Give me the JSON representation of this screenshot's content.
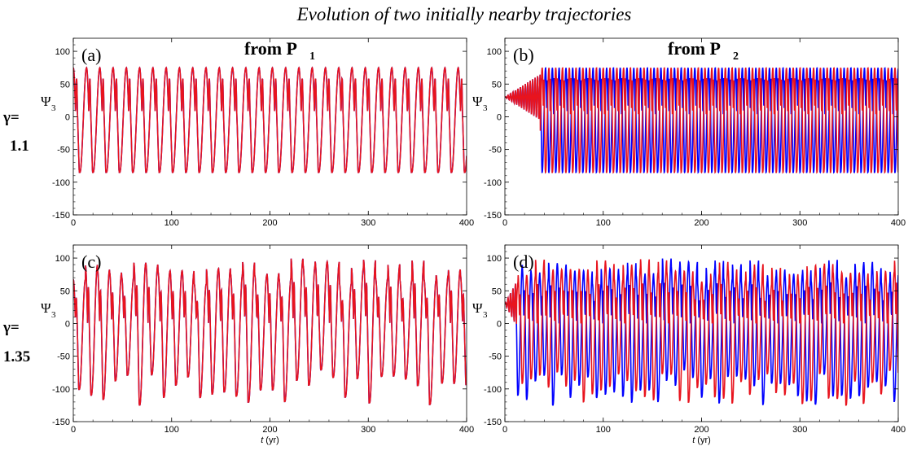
{
  "title": "Evolution of two initially nearby trajectories",
  "row_labels": [
    {
      "gamma_symbol": "γ=",
      "gamma_value": "1.1"
    },
    {
      "gamma_symbol": "γ=",
      "gamma_value": "1.35"
    }
  ],
  "colors": {
    "traj1": "#0000ff",
    "traj2": "#e8141e"
  },
  "chart_data": [
    {
      "type": "line",
      "panel": "(a)",
      "annotation": "from P",
      "annotation_sub": "1",
      "ylabel": "Ψ",
      "ylabel_sub": "3",
      "xlabel": "",
      "xlim": [
        0,
        400
      ],
      "ylim": [
        -150,
        120
      ],
      "xticks": [
        0,
        100,
        200,
        300,
        400
      ],
      "yticks": [
        -150,
        -100,
        -50,
        0,
        50,
        100
      ],
      "regime": "periodic",
      "gamma": 1.1,
      "period_yr": 13.5,
      "ymax": 75,
      "ymin": -85,
      "secondary_peak": 55,
      "diverge_at_yr": null,
      "series": []
    },
    {
      "type": "line",
      "panel": "(b)",
      "annotation": "from P",
      "annotation_sub": "2",
      "ylabel": "Ψ",
      "ylabel_sub": "3",
      "xlabel": "",
      "xlim": [
        0,
        400
      ],
      "ylim": [
        -150,
        120
      ],
      "xticks": [
        0,
        100,
        200,
        300,
        400
      ],
      "yticks": [
        -150,
        -100,
        -50,
        0,
        50,
        100
      ],
      "regime": "periodic",
      "gamma": 1.1,
      "period_yr": 6.9,
      "ymax": 75,
      "ymin": -85,
      "secondary_peak": 55,
      "diverge_at_yr": 36,
      "series": []
    },
    {
      "type": "line",
      "panel": "(c)",
      "annotation": "",
      "annotation_sub": "",
      "ylabel": "Ψ",
      "ylabel_sub": "3",
      "xlabel": "t (yr)",
      "xlim": [
        0,
        400
      ],
      "ylim": [
        -150,
        120
      ],
      "xticks": [
        0,
        100,
        200,
        300,
        400
      ],
      "yticks": [
        -150,
        -100,
        -50,
        0,
        50,
        100
      ],
      "regime": "chaotic",
      "gamma": 1.35,
      "period_yr": 12.3,
      "ymax": 100,
      "ymin": -125,
      "secondary_peak": 60,
      "diverge_at_yr": null,
      "series": []
    },
    {
      "type": "line",
      "panel": "(d)",
      "annotation": "",
      "annotation_sub": "",
      "ylabel": "Ψ",
      "ylabel_sub": "3",
      "xlabel": "t (yr)",
      "xlim": [
        0,
        400
      ],
      "ylim": [
        -150,
        120
      ],
      "xticks": [
        0,
        100,
        200,
        300,
        400
      ],
      "yticks": [
        -150,
        -100,
        -50,
        0,
        50,
        100
      ],
      "regime": "chaotic",
      "gamma": 1.35,
      "period_yr": 8.9,
      "ymax": 100,
      "ymin": -125,
      "secondary_peak": 60,
      "diverge_at_yr": 12,
      "series": []
    }
  ]
}
